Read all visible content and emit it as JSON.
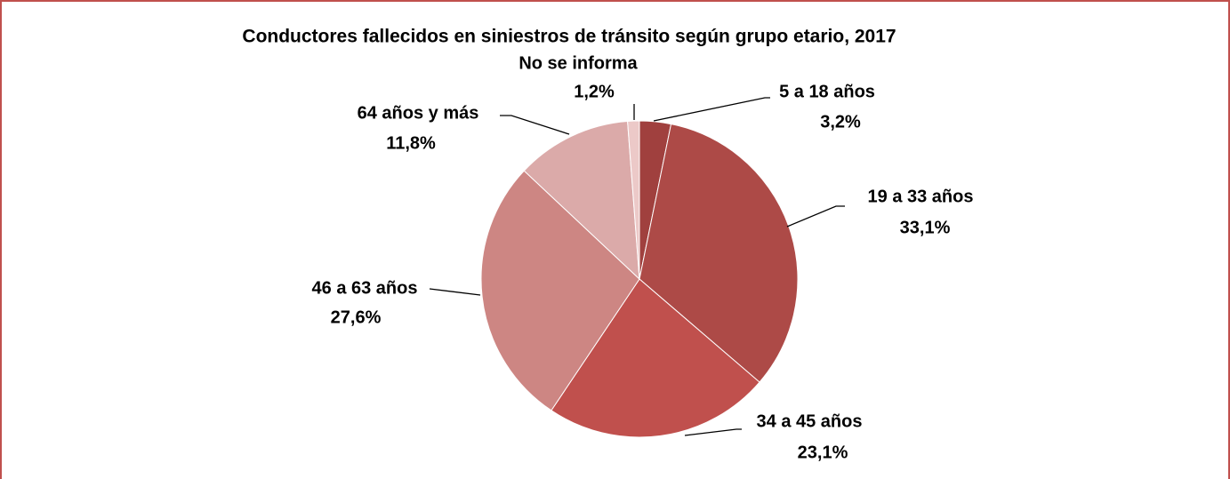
{
  "chart_data": {
    "type": "pie",
    "title": "Conductores fallecidos en siniestros de tránsito según grupo etario, 2017",
    "categories": [
      "5 a 18 años",
      "19 a 33 años",
      "34 a 45 años",
      "46 a 63 años",
      "64 años y más",
      "No se informa"
    ],
    "values": [
      3.2,
      33.1,
      23.1,
      27.6,
      11.8,
      1.2
    ],
    "value_labels": [
      "3,2%",
      "33,1%",
      "23,1%",
      "27,6%",
      "11,8%",
      "1,2%"
    ],
    "colors": [
      "#a0403e",
      "#ad4a47",
      "#c0504d",
      "#cd8683",
      "#dbaaa9",
      "#ecc9c8"
    ]
  }
}
